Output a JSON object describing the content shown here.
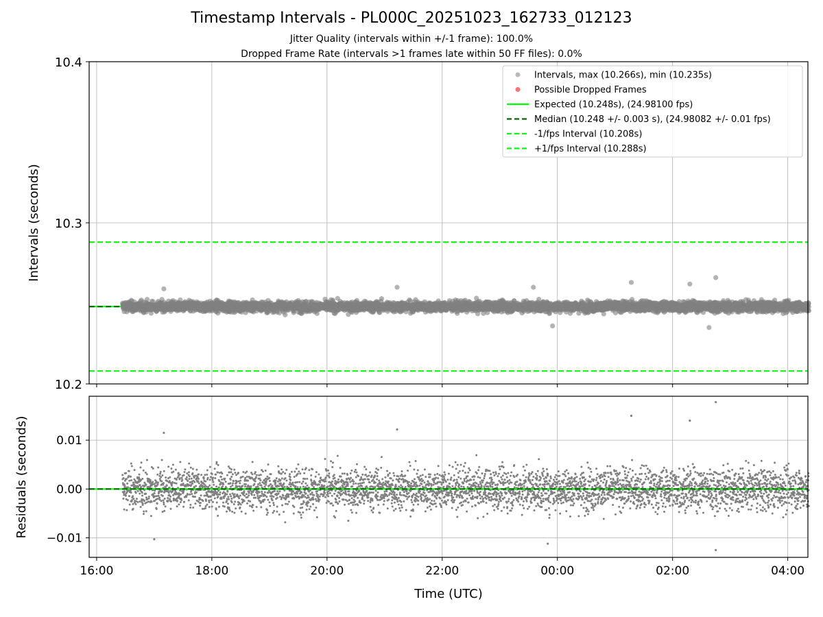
{
  "chart_data": [
    {
      "type": "scatter",
      "panel": "top",
      "title": "Timestamp Intervals - PL000C_20251023_162733_012123",
      "subtitles": [
        "Jitter Quality (intervals within +/-1 frame): 100.0%",
        "Dropped Frame Rate (intervals >1 frames late within 50 FF files): 0.0%"
      ],
      "xlabel": "",
      "ylabel": "Intervals (seconds)",
      "ylim": [
        10.2,
        10.4
      ],
      "y_ticks": [
        "10.2",
        "10.3",
        "10.4"
      ],
      "xlim_hours": [
        15.87,
        28.35
      ],
      "grid": true,
      "legend_position": "top-right",
      "legend": [
        {
          "label": "Intervals, max (10.266s), min (10.235s)",
          "kind": "marker",
          "color": "#808080"
        },
        {
          "label": "Possible Dropped Frames",
          "kind": "marker",
          "color": "#ff0000"
        },
        {
          "label": "Expected (10.248s), (24.98100 fps)",
          "kind": "line-solid",
          "color": "#00ff00"
        },
        {
          "label": "Median (10.248 +/- 0.003 s), (24.98082 +/- 0.01 fps)",
          "kind": "line-dashed",
          "color": "#006400"
        },
        {
          "label": "-1/fps Interval (10.208s)",
          "kind": "line-dashed",
          "color": "#00ff00"
        },
        {
          "label": "+1/fps Interval (10.288s)",
          "kind": "line-dashed",
          "color": "#00ff00"
        }
      ],
      "reference_lines": [
        {
          "name": "Expected",
          "y": 10.248,
          "color": "#00ff00",
          "style": "solid"
        },
        {
          "name": "Median",
          "y": 10.248,
          "color": "#006400",
          "style": "dashed"
        },
        {
          "name": "-1/fps Interval",
          "y": 10.208,
          "color": "#00ff00",
          "style": "dashed"
        },
        {
          "name": "+1/fps Interval",
          "y": 10.288,
          "color": "#00ff00",
          "style": "dashed"
        }
      ],
      "series": [
        {
          "name": "Intervals",
          "color": "#808080",
          "x_start": "16:27",
          "x_end": "04:22",
          "approx_points": 4200,
          "typical_range": [
            10.242,
            10.254
          ],
          "max": 10.266,
          "min": 10.235,
          "notable_points": [
            {
              "x": "17:10",
              "y": 10.259
            },
            {
              "x": "21:13",
              "y": 10.26
            },
            {
              "x": "23:35",
              "y": 10.26
            },
            {
              "x": "01:17",
              "y": 10.263
            },
            {
              "x": "02:18",
              "y": 10.262
            },
            {
              "x": "02:45",
              "y": 10.266
            },
            {
              "x": "23:55",
              "y": 10.236
            },
            {
              "x": "02:38",
              "y": 10.235
            }
          ]
        }
      ]
    },
    {
      "type": "scatter",
      "panel": "bottom",
      "xlabel": "Time (UTC)",
      "ylabel": "Residuals (seconds)",
      "ylim": [
        -0.014,
        0.019
      ],
      "y_ticks": [
        "−0.01",
        "0.00",
        "0.01"
      ],
      "x_ticks": [
        "16:00",
        "18:00",
        "20:00",
        "22:00",
        "00:00",
        "02:00",
        "04:00"
      ],
      "grid": true,
      "reference_lines": [
        {
          "name": "Expected",
          "y": 0.0,
          "color": "#00ff00",
          "style": "solid"
        },
        {
          "name": "Median",
          "y": 0.0,
          "color": "#006400",
          "style": "dashed"
        }
      ],
      "series": [
        {
          "name": "Residuals",
          "color": "#808080",
          "x_start": "16:27",
          "x_end": "04:22",
          "approx_points": 4200,
          "typical_range": [
            -0.007,
            0.007
          ],
          "max": 0.0178,
          "min": -0.0125,
          "notable_points": [
            {
              "x": "17:10",
              "y": 0.0115
            },
            {
              "x": "21:13",
              "y": 0.0122
            },
            {
              "x": "01:17",
              "y": 0.015
            },
            {
              "x": "02:18",
              "y": 0.014
            },
            {
              "x": "02:45",
              "y": 0.0178
            },
            {
              "x": "02:45",
              "y": -0.0125
            },
            {
              "x": "17:00",
              "y": -0.0103
            },
            {
              "x": "23:50",
              "y": -0.0112
            }
          ]
        }
      ]
    }
  ]
}
